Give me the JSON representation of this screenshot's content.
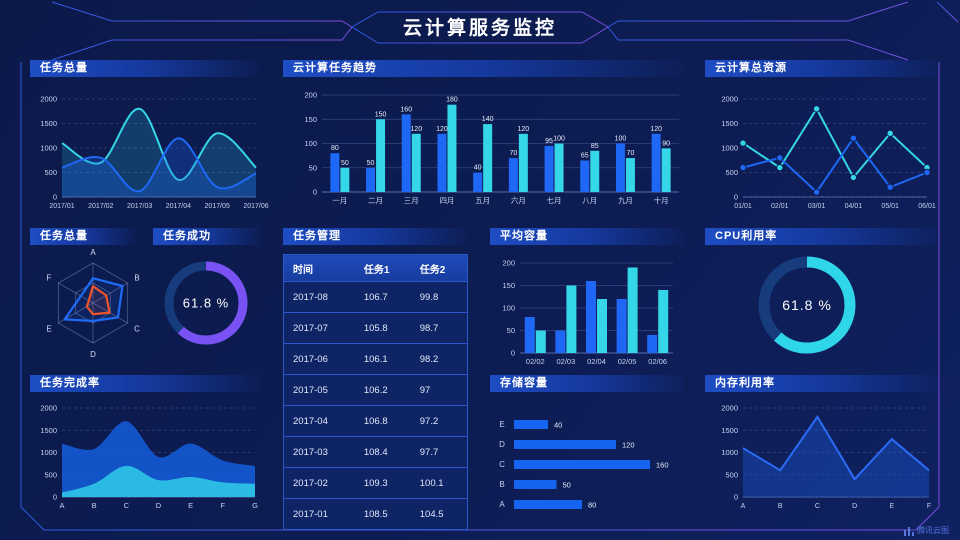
{
  "title": "云计算服务监控",
  "brand": "腾讯云图",
  "panels": {
    "task_total": {
      "title": "任务总量"
    },
    "task_trend": {
      "title": "云计算任务趋势"
    },
    "total_resource": {
      "title": "云计算总资源"
    },
    "task_radar": {
      "title": "任务总量"
    },
    "task_success": {
      "title": "任务成功",
      "value": "61.8 %"
    },
    "task_table": {
      "title": "任务管理"
    },
    "avg_capacity": {
      "title": "平均容量"
    },
    "cpu": {
      "title": "CPU利用率",
      "value": "61.8 %"
    },
    "completion": {
      "title": "任务完成率"
    },
    "storage": {
      "title": "存储容量"
    },
    "memory": {
      "title": "内存利用率"
    }
  },
  "table": {
    "headers": [
      "时间",
      "任务1",
      "任务2"
    ],
    "rows": [
      [
        "2017-08",
        "106.7",
        "99.8"
      ],
      [
        "2017-07",
        "105.8",
        "98.7"
      ],
      [
        "2017-06",
        "106.1",
        "98.2"
      ],
      [
        "2017-05",
        "106.2",
        "97"
      ],
      [
        "2017-04",
        "106.8",
        "97.2"
      ],
      [
        "2017-03",
        "108.4",
        "97.7"
      ],
      [
        "2017-02",
        "109.3",
        "100.1"
      ],
      [
        "2017-01",
        "108.5",
        "104.5"
      ]
    ]
  },
  "chart_data": [
    {
      "id": "task-total-area",
      "type": "area",
      "title": "任务总量",
      "x": [
        "2017/01",
        "2017/02",
        "2017/03",
        "2017/04",
        "2017/05",
        "2017/06"
      ],
      "ylim": [
        0,
        2000
      ],
      "yticks": [
        0,
        500,
        1000,
        1500,
        2000
      ],
      "grid": "dashed",
      "series": [
        {
          "name": "series-cyan",
          "color": "#35d6e8",
          "fill": "rgba(45,200,230,0.20)",
          "values": [
            1100,
            700,
            1800,
            350,
            1300,
            600
          ]
        },
        {
          "name": "series-blue",
          "color": "#1e68f5",
          "fill": "rgba(30,100,240,0.28)",
          "values": [
            600,
            800,
            120,
            1200,
            200,
            480
          ]
        }
      ]
    },
    {
      "id": "task-trend",
      "type": "bar",
      "title": "云计算任务趋势",
      "show_labels": true,
      "categories": [
        "一月",
        "二月",
        "三月",
        "四月",
        "五月",
        "六月",
        "七月",
        "八月",
        "九月",
        "十月"
      ],
      "ylim": [
        0,
        200
      ],
      "yticks": [
        0,
        50,
        100,
        150,
        200
      ],
      "grid": "solid",
      "series": [
        {
          "name": "series-blue",
          "color": "#1e68f5",
          "values": [
            80,
            50,
            160,
            120,
            40,
            70,
            95,
            65,
            100,
            120
          ]
        },
        {
          "name": "series-cyan",
          "color": "#35d6e8",
          "values": [
            50,
            150,
            120,
            180,
            140,
            120,
            100,
            85,
            70,
            90
          ]
        }
      ]
    },
    {
      "id": "total-resource",
      "type": "line",
      "title": "云计算总资源",
      "x": [
        "01/01",
        "02/01",
        "03/01",
        "04/01",
        "05/01",
        "06/01"
      ],
      "ylim": [
        0,
        2000
      ],
      "yticks": [
        0,
        500,
        1000,
        1500,
        2000
      ],
      "grid": "dashed",
      "markers": true,
      "series": [
        {
          "name": "series-cyan",
          "color": "#35d6e8",
          "values": [
            1100,
            600,
            1800,
            400,
            1300,
            600
          ]
        },
        {
          "name": "series-blue",
          "color": "#1e68f5",
          "values": [
            600,
            800,
            100,
            1200,
            200,
            500
          ]
        }
      ]
    },
    {
      "id": "task-radar",
      "type": "radar",
      "title": "任务总量",
      "axes": [
        "A",
        "B",
        "C",
        "D",
        "E",
        "F"
      ],
      "max": 100,
      "series": [
        {
          "name": "blue-polygon",
          "color": "#1e6bf5",
          "values": [
            62,
            85,
            72,
            45,
            82,
            35
          ]
        },
        {
          "name": "orange-polygon",
          "color": "#f0542a",
          "values": [
            42,
            38,
            48,
            28,
            18,
            12
          ]
        }
      ]
    },
    {
      "id": "task-success",
      "type": "donut",
      "title": "任务成功",
      "value": 61.8,
      "label": "61.8 %",
      "color": "#7a52f4",
      "track": "#173c7e"
    },
    {
      "id": "avg-capacity",
      "type": "bar",
      "title": "平均容量",
      "show_labels": false,
      "categories": [
        "02/02",
        "02/03",
        "02/04",
        "02/05",
        "02/06"
      ],
      "ylim": [
        0,
        200
      ],
      "yticks": [
        0,
        50,
        100,
        150,
        200
      ],
      "grid": "solid",
      "series": [
        {
          "name": "series-blue",
          "color": "#1e68f5",
          "values": [
            80,
            50,
            160,
            120,
            40
          ]
        },
        {
          "name": "series-cyan",
          "color": "#35d6e8",
          "values": [
            50,
            150,
            120,
            190,
            140
          ]
        }
      ]
    },
    {
      "id": "cpu",
      "type": "donut",
      "title": "CPU利用率",
      "value": 61.8,
      "label": "61.8 %",
      "color": "#2fd5e8",
      "track": "#173c7e"
    },
    {
      "id": "completion",
      "type": "stacked-area",
      "title": "任务完成率",
      "x": [
        "A",
        "B",
        "C",
        "D",
        "E",
        "F",
        "G"
      ],
      "ylim": [
        0,
        2000
      ],
      "yticks": [
        0,
        500,
        1000,
        1500,
        2000
      ],
      "grid": "dashed",
      "total": {
        "name": "blue-layer",
        "color": "#1456cf",
        "values": [
          1200,
          1080,
          1700,
          900,
          1200,
          820,
          700
        ]
      },
      "bottom": {
        "name": "cyan-layer",
        "color": "#2bc0e5",
        "values": [
          100,
          300,
          700,
          380,
          450,
          330,
          300
        ]
      }
    },
    {
      "id": "storage",
      "type": "hbar",
      "title": "存储容量",
      "categories": [
        "E",
        "D",
        "C",
        "B",
        "A"
      ],
      "values": [
        40,
        120,
        160,
        50,
        80
      ],
      "color": "#1565f0",
      "xmax": 160
    },
    {
      "id": "memory",
      "type": "line-area",
      "title": "内存利用率",
      "x": [
        "A",
        "B",
        "C",
        "D",
        "E",
        "F"
      ],
      "ylim": [
        0,
        2000
      ],
      "yticks": [
        0,
        500,
        1000,
        1500,
        2000
      ],
      "grid": "dashed",
      "series": [
        {
          "name": "series-blue",
          "color": "#2a6cf5",
          "fill": "rgba(23,77,190,0.50)",
          "values": [
            1100,
            600,
            1800,
            400,
            1300,
            600
          ]
        }
      ]
    }
  ]
}
